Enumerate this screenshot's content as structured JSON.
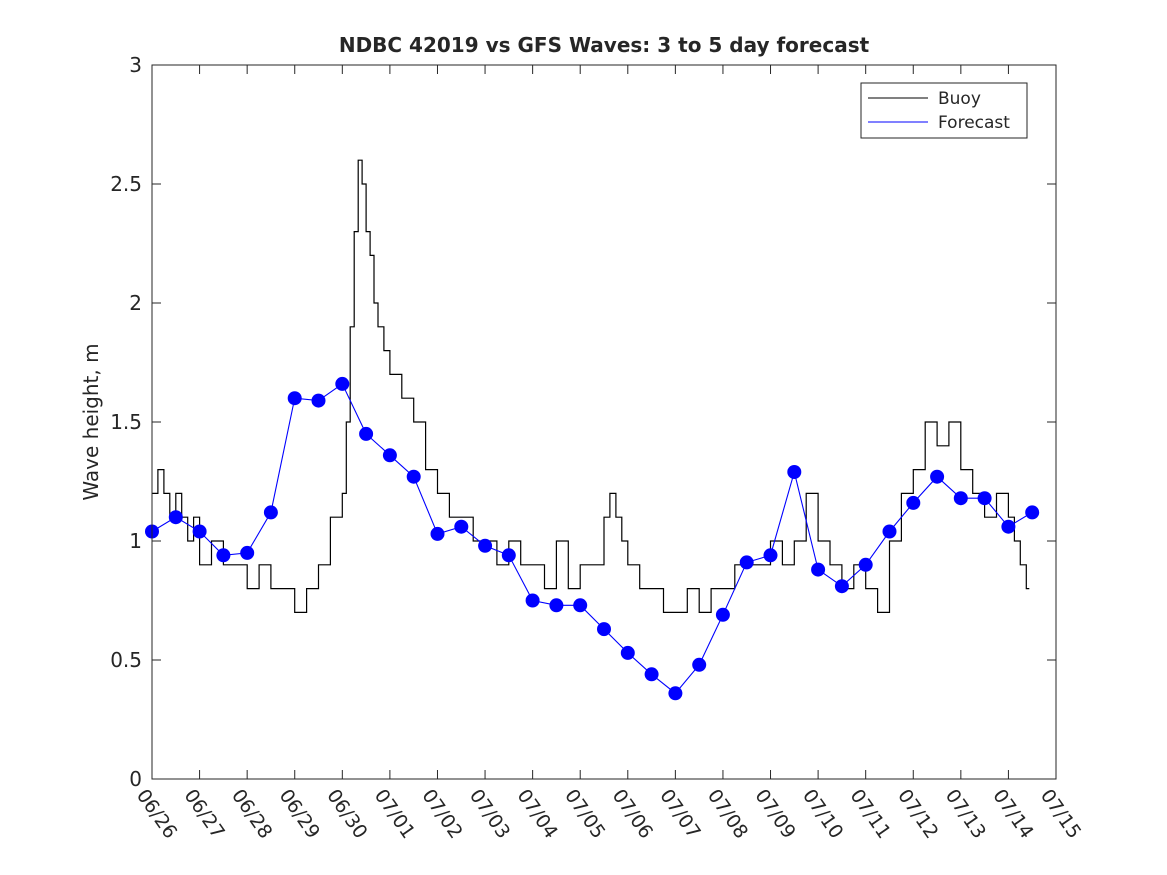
{
  "chart_data": {
    "type": "line",
    "title": "NDBC 42019 vs GFS Waves: 3 to 5 day forecast",
    "xlabel": "",
    "ylabel": "Wave height, m",
    "xlim": [
      "06/26",
      "07/15"
    ],
    "ylim": [
      0,
      3
    ],
    "x_ticks": [
      "06/26",
      "06/27",
      "06/28",
      "06/29",
      "06/30",
      "07/01",
      "07/02",
      "07/03",
      "07/04",
      "07/05",
      "07/06",
      "07/07",
      "07/08",
      "07/09",
      "07/10",
      "07/11",
      "07/12",
      "07/13",
      "07/14",
      "07/15"
    ],
    "y_ticks": [
      "0",
      "0.5",
      "1",
      "1.5",
      "2",
      "2.5",
      "3"
    ],
    "grid": false,
    "legend": {
      "position": "top-right",
      "entries": [
        "Buoy",
        "Forecast"
      ]
    },
    "series": [
      {
        "name": "Buoy",
        "color": "#000000",
        "points": [
          [
            "06/26 00:00",
            1.2
          ],
          [
            "06/26 03:00",
            1.3
          ],
          [
            "06/26 06:00",
            1.2
          ],
          [
            "06/26 09:00",
            1.1
          ],
          [
            "06/26 12:00",
            1.2
          ],
          [
            "06/26 15:00",
            1.1
          ],
          [
            "06/26 18:00",
            1.0
          ],
          [
            "06/26 21:00",
            1.1
          ],
          [
            "06/27 00:00",
            0.9
          ],
          [
            "06/27 06:00",
            1.0
          ],
          [
            "06/27 12:00",
            0.9
          ],
          [
            "06/27 18:00",
            0.9
          ],
          [
            "06/28 00:00",
            0.8
          ],
          [
            "06/28 06:00",
            0.9
          ],
          [
            "06/28 12:00",
            0.8
          ],
          [
            "06/28 18:00",
            0.8
          ],
          [
            "06/29 00:00",
            0.7
          ],
          [
            "06/29 06:00",
            0.8
          ],
          [
            "06/29 12:00",
            0.9
          ],
          [
            "06/29 18:00",
            1.1
          ],
          [
            "06/30 00:00",
            1.2
          ],
          [
            "06/30 02:00",
            1.5
          ],
          [
            "06/30 04:00",
            1.9
          ],
          [
            "06/30 06:00",
            2.3
          ],
          [
            "06/30 08:00",
            2.6
          ],
          [
            "06/30 10:00",
            2.5
          ],
          [
            "06/30 12:00",
            2.3
          ],
          [
            "06/30 14:00",
            2.2
          ],
          [
            "06/30 16:00",
            2.0
          ],
          [
            "06/30 18:00",
            1.9
          ],
          [
            "06/30 21:00",
            1.8
          ],
          [
            "07/01 00:00",
            1.7
          ],
          [
            "07/01 06:00",
            1.6
          ],
          [
            "07/01 12:00",
            1.5
          ],
          [
            "07/01 18:00",
            1.3
          ],
          [
            "07/02 00:00",
            1.2
          ],
          [
            "07/02 06:00",
            1.1
          ],
          [
            "07/02 12:00",
            1.1
          ],
          [
            "07/02 18:00",
            1.0
          ],
          [
            "07/03 00:00",
            1.0
          ],
          [
            "07/03 06:00",
            0.9
          ],
          [
            "07/03 12:00",
            1.0
          ],
          [
            "07/03 18:00",
            0.9
          ],
          [
            "07/04 00:00",
            0.9
          ],
          [
            "07/04 06:00",
            0.8
          ],
          [
            "07/04 12:00",
            1.0
          ],
          [
            "07/04 18:00",
            0.8
          ],
          [
            "07/05 00:00",
            0.9
          ],
          [
            "07/05 06:00",
            0.9
          ],
          [
            "07/05 12:00",
            1.1
          ],
          [
            "07/05 15:00",
            1.2
          ],
          [
            "07/05 18:00",
            1.1
          ],
          [
            "07/05 21:00",
            1.0
          ],
          [
            "07/06 00:00",
            0.9
          ],
          [
            "07/06 06:00",
            0.8
          ],
          [
            "07/06 12:00",
            0.8
          ],
          [
            "07/06 18:00",
            0.7
          ],
          [
            "07/07 00:00",
            0.7
          ],
          [
            "07/07 06:00",
            0.8
          ],
          [
            "07/07 12:00",
            0.7
          ],
          [
            "07/07 18:00",
            0.8
          ],
          [
            "07/08 00:00",
            0.8
          ],
          [
            "07/08 06:00",
            0.9
          ],
          [
            "07/08 12:00",
            0.9
          ],
          [
            "07/08 18:00",
            0.9
          ],
          [
            "07/09 00:00",
            1.0
          ],
          [
            "07/09 06:00",
            0.9
          ],
          [
            "07/09 12:00",
            1.0
          ],
          [
            "07/09 18:00",
            1.2
          ],
          [
            "07/10 00:00",
            1.0
          ],
          [
            "07/10 06:00",
            0.9
          ],
          [
            "07/10 12:00",
            0.8
          ],
          [
            "07/10 18:00",
            0.9
          ],
          [
            "07/11 00:00",
            0.8
          ],
          [
            "07/11 06:00",
            0.7
          ],
          [
            "07/11 12:00",
            1.0
          ],
          [
            "07/11 18:00",
            1.2
          ],
          [
            "07/12 00:00",
            1.3
          ],
          [
            "07/12 06:00",
            1.5
          ],
          [
            "07/12 12:00",
            1.4
          ],
          [
            "07/12 18:00",
            1.5
          ],
          [
            "07/13 00:00",
            1.3
          ],
          [
            "07/13 06:00",
            1.2
          ],
          [
            "07/13 12:00",
            1.1
          ],
          [
            "07/13 18:00",
            1.2
          ],
          [
            "07/14 00:00",
            1.1
          ],
          [
            "07/14 03:00",
            1.0
          ],
          [
            "07/14 06:00",
            0.9
          ],
          [
            "07/14 09:00",
            0.8
          ]
        ]
      },
      {
        "name": "Forecast",
        "color": "#0000ff",
        "points": [
          [
            "06/26 00:00",
            1.04
          ],
          [
            "06/26 12:00",
            1.1
          ],
          [
            "06/27 00:00",
            1.04
          ],
          [
            "06/27 12:00",
            0.94
          ],
          [
            "06/28 00:00",
            0.95
          ],
          [
            "06/28 12:00",
            1.12
          ],
          [
            "06/29 00:00",
            1.6
          ],
          [
            "06/29 12:00",
            1.59
          ],
          [
            "06/30 00:00",
            1.66
          ],
          [
            "06/30 12:00",
            1.45
          ],
          [
            "07/01 00:00",
            1.36
          ],
          [
            "07/01 12:00",
            1.27
          ],
          [
            "07/02 00:00",
            1.03
          ],
          [
            "07/02 12:00",
            1.06
          ],
          [
            "07/03 00:00",
            0.98
          ],
          [
            "07/03 12:00",
            0.94
          ],
          [
            "07/04 00:00",
            0.75
          ],
          [
            "07/04 12:00",
            0.73
          ],
          [
            "07/05 00:00",
            0.73
          ],
          [
            "07/05 12:00",
            0.63
          ],
          [
            "07/06 00:00",
            0.53
          ],
          [
            "07/06 12:00",
            0.44
          ],
          [
            "07/07 00:00",
            0.36
          ],
          [
            "07/07 12:00",
            0.48
          ],
          [
            "07/08 00:00",
            0.69
          ],
          [
            "07/08 12:00",
            0.91
          ],
          [
            "07/09 00:00",
            0.94
          ],
          [
            "07/09 12:00",
            1.29
          ],
          [
            "07/10 00:00",
            0.88
          ],
          [
            "07/10 12:00",
            0.81
          ],
          [
            "07/11 00:00",
            0.9
          ],
          [
            "07/11 12:00",
            1.04
          ],
          [
            "07/12 00:00",
            1.16
          ],
          [
            "07/12 12:00",
            1.27
          ],
          [
            "07/13 00:00",
            1.18
          ],
          [
            "07/13 12:00",
            1.18
          ],
          [
            "07/14 00:00",
            1.06
          ],
          [
            "07/14 12:00",
            1.12
          ]
        ]
      }
    ]
  }
}
